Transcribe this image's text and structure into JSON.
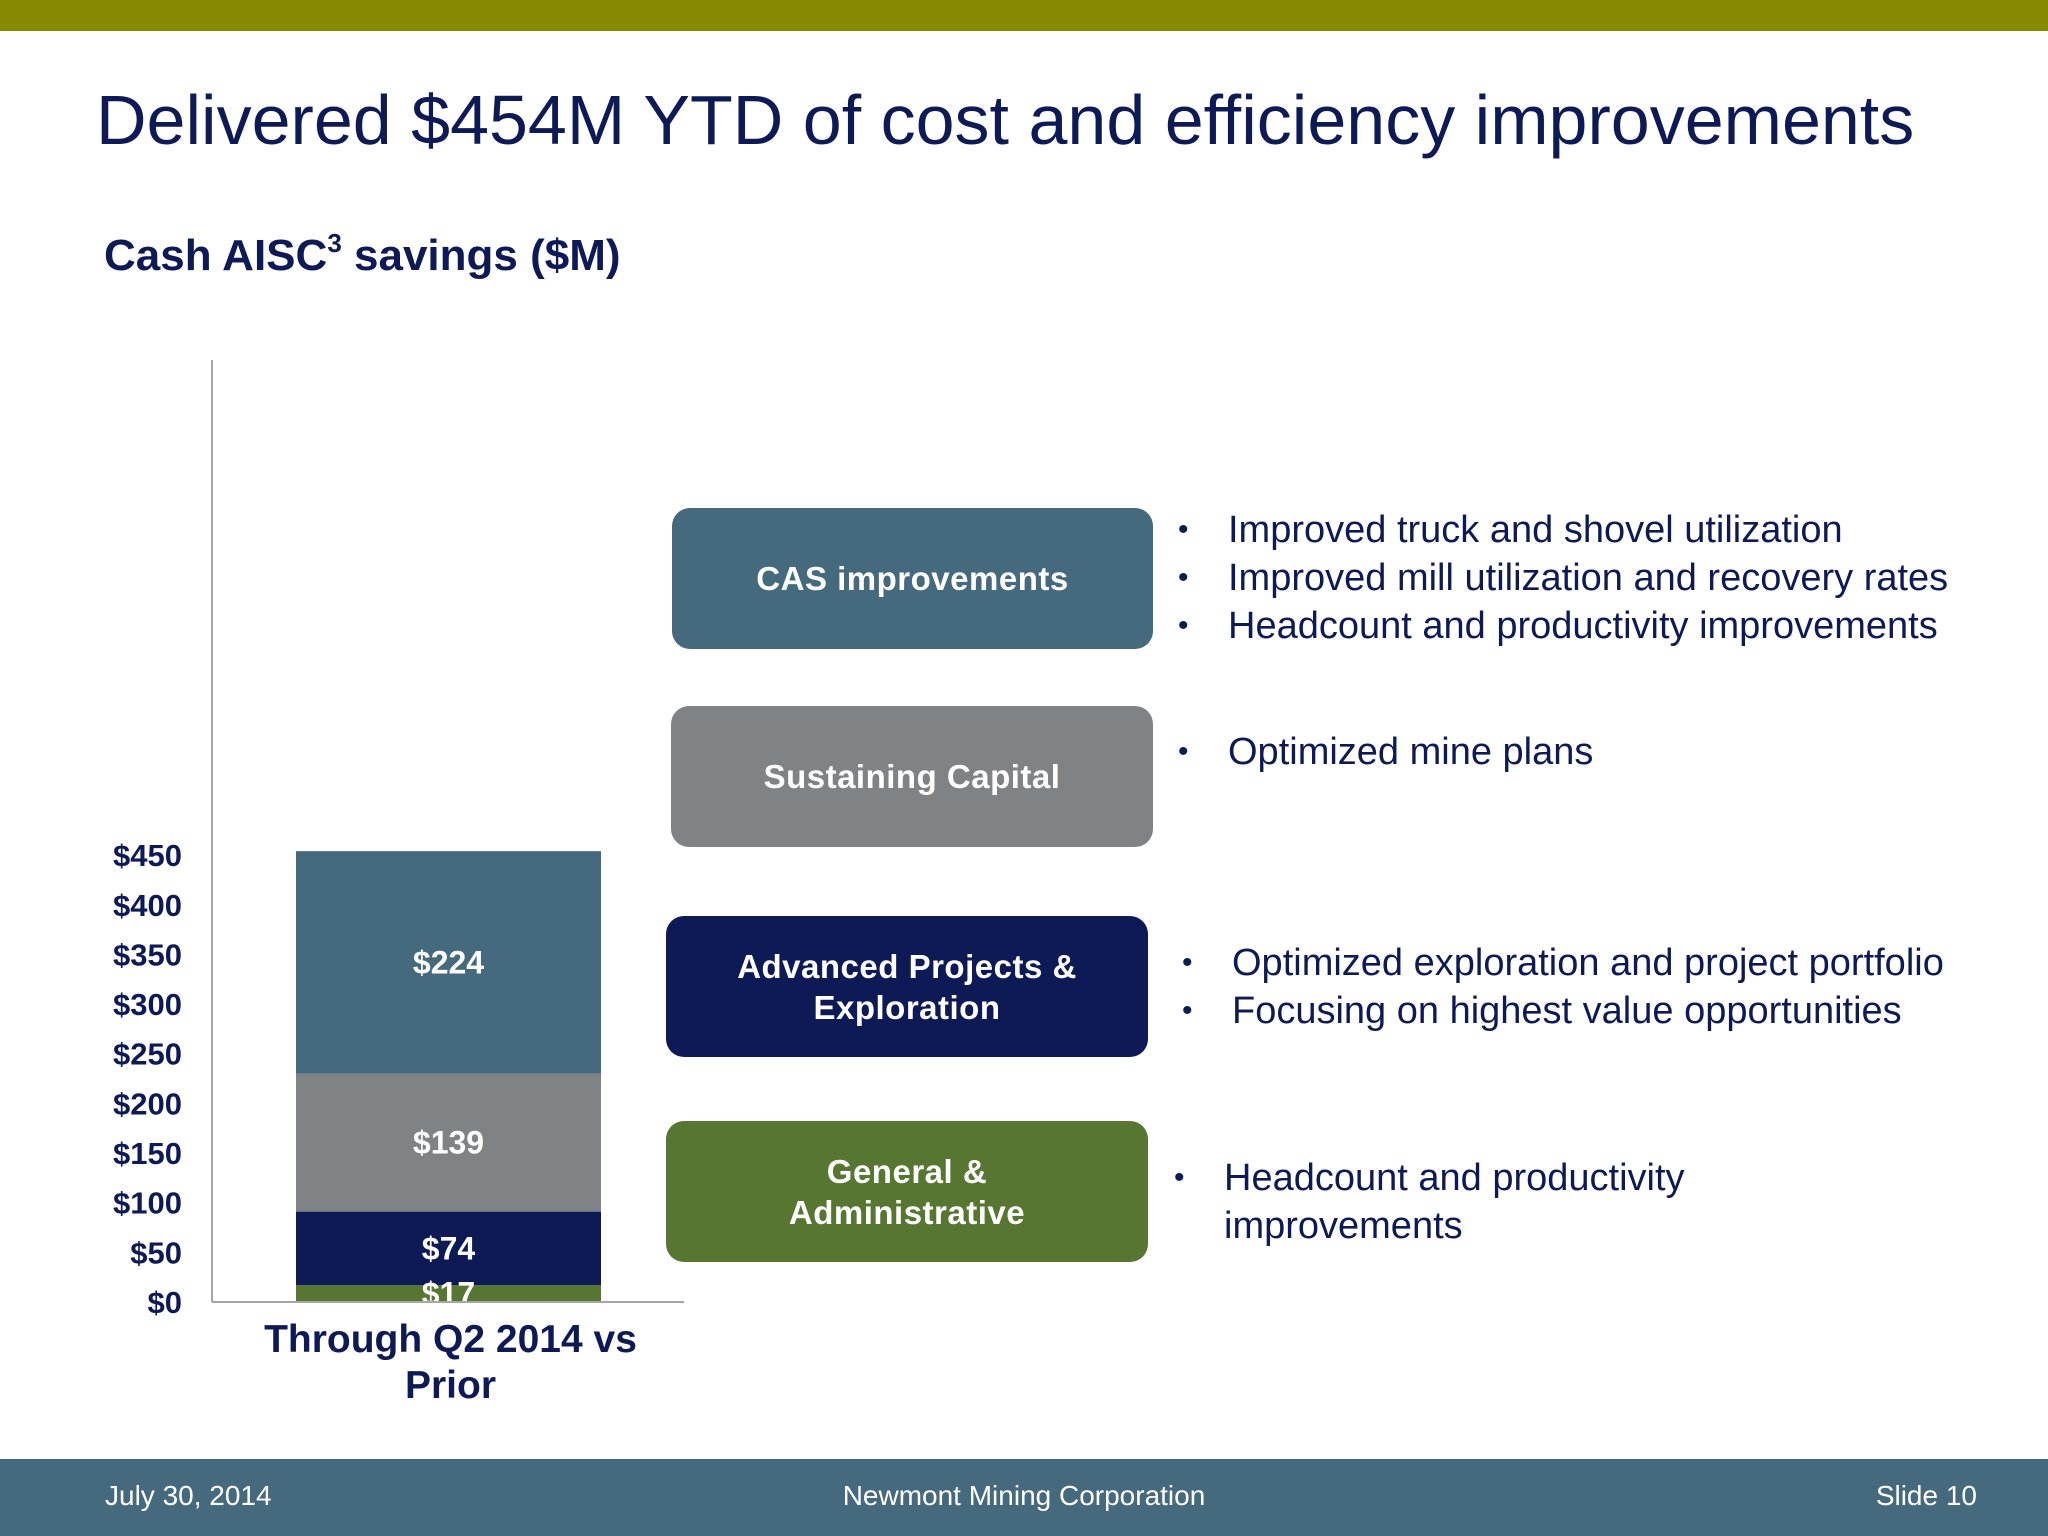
{
  "slide": {
    "title": "Delivered $454M YTD of cost and efficiency improvements",
    "chart_title_main": "Cash AISC",
    "chart_title_sup": "3",
    "chart_title_rest": " savings ($M)"
  },
  "chart_data": {
    "type": "bar",
    "stacked": true,
    "title": "Cash AISC3 savings ($M)",
    "categories": [
      "Through Q2 2014  vs Prior"
    ],
    "category_label_lines": [
      "Through Q2 2014  vs",
      "Prior"
    ],
    "ylim": [
      0,
      450
    ],
    "yticks": [
      0,
      50,
      100,
      150,
      200,
      250,
      300,
      350,
      400,
      450
    ],
    "ytick_labels": [
      "$0",
      "$50",
      "$100",
      "$150",
      "$200",
      "$250",
      "$300",
      "$350",
      "$400",
      "$450"
    ],
    "grid": false,
    "series": [
      {
        "name": "General & Administrative",
        "values": [
          17
        ],
        "label": "$17",
        "color": "#577631"
      },
      {
        "name": "Advanced Projects & Exploration",
        "values": [
          74
        ],
        "label": "$74",
        "color": "#0d1a55"
      },
      {
        "name": "Sustaining Capital",
        "values": [
          139
        ],
        "label": "$139",
        "color": "#808385"
      },
      {
        "name": "CAS improvements",
        "values": [
          224
        ],
        "label": "$224",
        "color": "#466a7d"
      }
    ]
  },
  "categories": [
    {
      "label": "CAS improvements",
      "color": "#466a7d",
      "bullets": [
        "Improved truck and shovel utilization",
        "Improved mill utilization and recovery rates",
        "Headcount and productivity improvements"
      ]
    },
    {
      "label": "Sustaining Capital",
      "color": "#808385",
      "bullets": [
        "Optimized mine plans"
      ]
    },
    {
      "label": "Advanced Projects &\nExploration",
      "color": "#0d1a55",
      "bullets": [
        "Optimized exploration and project portfolio",
        "Focusing on highest value opportunities"
      ]
    },
    {
      "label": "General &\nAdministrative",
      "color": "#577631",
      "bullets": [
        "Headcount and productivity improvements"
      ]
    }
  ],
  "footer": {
    "date": "July 30, 2014",
    "company": "Newmont Mining Corporation",
    "slide": "Slide 10"
  }
}
